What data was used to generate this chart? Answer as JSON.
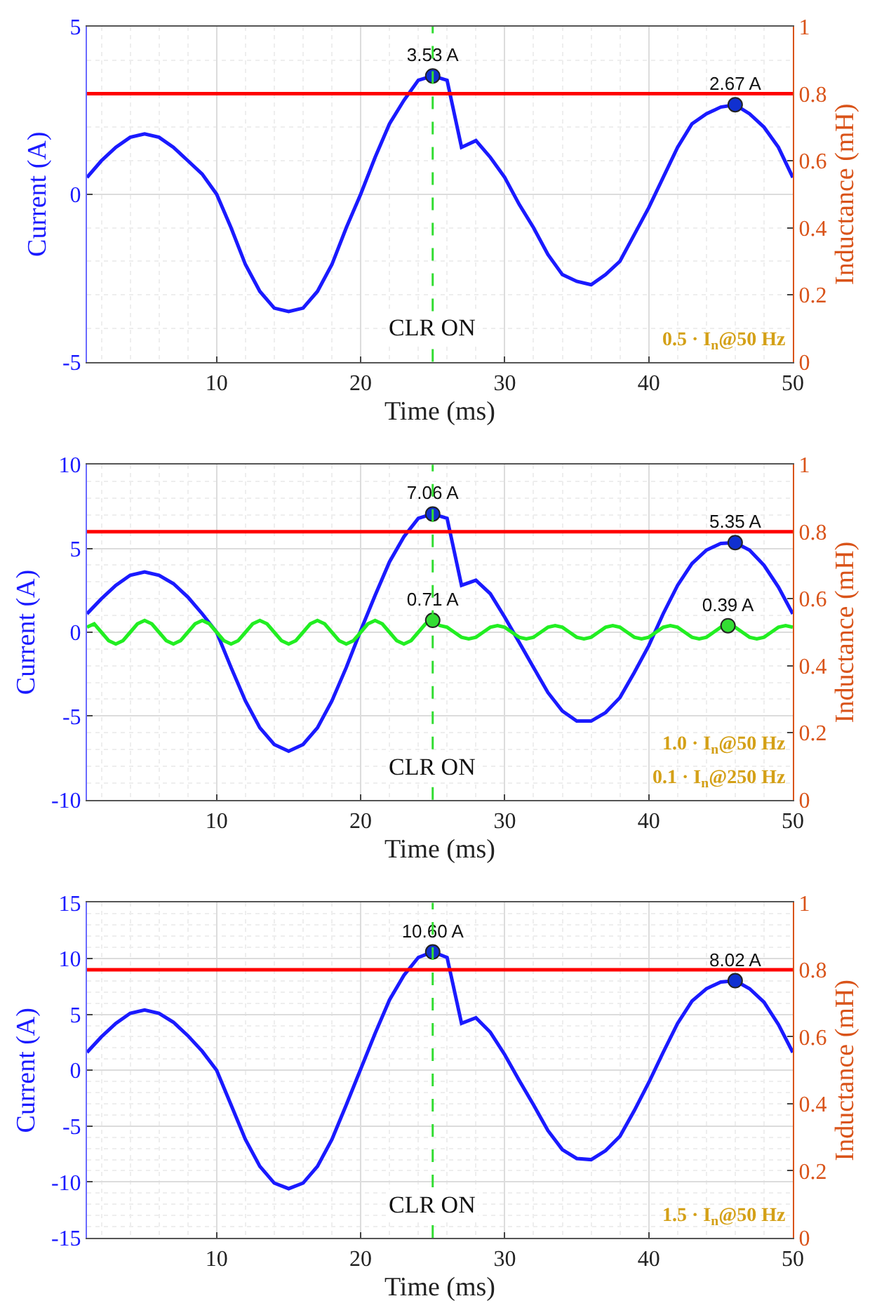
{
  "chart_data": [
    {
      "type": "line",
      "xlabel": "Time (ms)",
      "ylabel": "Current (A)",
      "y2label": "Inductance (mH)",
      "x": [
        1,
        2,
        3,
        4,
        5,
        6,
        7,
        8,
        9,
        10,
        11,
        12,
        13,
        14,
        15,
        16,
        17,
        18,
        19,
        20,
        21,
        22,
        23,
        24,
        25,
        26,
        27,
        28,
        29,
        30,
        31,
        32,
        33,
        34,
        35,
        36,
        37,
        38,
        39,
        40,
        41,
        42,
        43,
        44,
        45,
        46,
        47,
        48,
        49,
        50
      ],
      "series": [
        {
          "color": "#1a1aff",
          "marker": "none",
          "line_style": "solid",
          "values": [
            0.5,
            1.0,
            1.4,
            1.7,
            1.8,
            1.7,
            1.4,
            1.0,
            0.6,
            0.0,
            -1.0,
            -2.1,
            -2.9,
            -3.4,
            -3.5,
            -3.4,
            -2.9,
            -2.1,
            -1.0,
            0.0,
            1.1,
            2.1,
            2.8,
            3.4,
            3.53,
            3.4,
            1.4,
            1.6,
            1.1,
            0.5,
            -0.3,
            -1.0,
            -1.8,
            -2.4,
            -2.6,
            -2.7,
            -2.4,
            -2.0,
            -1.2,
            -0.4,
            0.5,
            1.4,
            2.1,
            2.4,
            2.6,
            2.67,
            2.4,
            2.0,
            1.4,
            0.5
          ]
        },
        {
          "type": "scatter",
          "color": "#1030d0",
          "marker": "circle",
          "x": [
            25,
            46
          ],
          "values": [
            3.53,
            2.67
          ],
          "value_labels": [
            "3.53 A",
            "2.67 A"
          ]
        }
      ],
      "xlim": [
        1,
        50
      ],
      "xticks": [
        10,
        20,
        30,
        40,
        50
      ],
      "ylim": [
        -5,
        5
      ],
      "yticks": [
        -5,
        0,
        5
      ],
      "y2lim": [
        0,
        1
      ],
      "y2ticks": [
        0,
        0.2,
        0.4,
        0.6,
        0.8,
        1
      ],
      "ref_lines": [
        {
          "axis": "x",
          "value": 25,
          "label": "CLR ON",
          "color": "#33dd33",
          "line_style": "dashed"
        },
        {
          "axis": "y2",
          "value": 0.8,
          "label": null,
          "color": "#ff0000",
          "line_style": "solid"
        }
      ],
      "annotations": [
        "0.5 · I$_{n}$@50 Hz"
      ],
      "grid": true
    },
    {
      "type": "line",
      "xlabel": "Time (ms)",
      "ylabel": "Current (A)",
      "y2label": "Inductance (mH)",
      "x": [
        1,
        2,
        3,
        4,
        5,
        6,
        7,
        8,
        9,
        10,
        11,
        12,
        13,
        14,
        15,
        16,
        17,
        18,
        19,
        20,
        21,
        22,
        23,
        24,
        25,
        26,
        27,
        28,
        29,
        30,
        31,
        32,
        33,
        34,
        35,
        36,
        37,
        38,
        39,
        40,
        41,
        42,
        43,
        44,
        45,
        46,
        47,
        48,
        49,
        50
      ],
      "series": [
        {
          "color": "#1a1aff",
          "marker": "none",
          "line_style": "solid",
          "values": [
            1.1,
            2.0,
            2.8,
            3.4,
            3.6,
            3.4,
            2.9,
            2.1,
            1.1,
            0.0,
            -2.1,
            -4.1,
            -5.7,
            -6.7,
            -7.1,
            -6.7,
            -5.7,
            -4.1,
            -2.1,
            0.1,
            2.2,
            4.2,
            5.7,
            6.8,
            7.06,
            6.8,
            2.8,
            3.1,
            2.3,
            0.9,
            -0.6,
            -2.1,
            -3.6,
            -4.7,
            -5.3,
            -5.3,
            -4.8,
            -3.9,
            -2.4,
            -0.8,
            1.1,
            2.8,
            4.1,
            4.9,
            5.3,
            5.35,
            4.9,
            4.0,
            2.7,
            1.1
          ]
        },
        {
          "color": "#22ee22",
          "marker": "none",
          "line_style": "solid",
          "x": [
            1,
            1.5,
            2,
            2.5,
            3,
            3.5,
            4,
            4.5,
            5,
            5.5,
            6,
            6.5,
            7,
            7.5,
            8,
            8.5,
            9,
            9.5,
            10,
            10.5,
            11,
            11.5,
            12,
            12.5,
            13,
            13.5,
            14,
            14.5,
            15,
            15.5,
            16,
            16.5,
            17,
            17.5,
            18,
            18.5,
            19,
            19.5,
            20,
            20.5,
            21,
            21.5,
            22,
            22.5,
            23,
            23.5,
            24,
            24.5,
            25,
            25.5,
            26,
            26.5,
            27,
            27.5,
            28,
            28.5,
            29,
            29.5,
            30,
            30.5,
            31,
            31.5,
            32,
            32.5,
            33,
            33.5,
            34,
            34.5,
            35,
            35.5,
            36,
            36.5,
            37,
            37.5,
            38,
            38.5,
            39,
            39.5,
            40,
            40.5,
            41,
            41.5,
            42,
            42.5,
            43,
            43.5,
            44,
            44.5,
            45,
            45.5,
            46,
            46.5,
            47,
            47.5,
            48,
            48.5,
            49,
            49.5,
            50
          ],
          "values": [
            0.3,
            0.5,
            0,
            -0.5,
            -0.7,
            -0.5,
            0,
            0.5,
            0.7,
            0.5,
            0,
            -0.5,
            -0.7,
            -0.5,
            0,
            0.5,
            0.7,
            0.5,
            0,
            -0.5,
            -0.7,
            -0.5,
            0,
            0.5,
            0.7,
            0.5,
            0,
            -0.5,
            -0.7,
            -0.5,
            0,
            0.5,
            0.7,
            0.5,
            0,
            -0.5,
            -0.7,
            -0.5,
            0,
            0.5,
            0.7,
            0.5,
            0,
            -0.5,
            -0.7,
            -0.5,
            0,
            0.5,
            0.7,
            0.4,
            0.3,
            0,
            -0.3,
            -0.4,
            -0.3,
            0,
            0.3,
            0.4,
            0.3,
            0,
            -0.3,
            -0.4,
            -0.3,
            0,
            0.3,
            0.4,
            0.3,
            0,
            -0.3,
            -0.4,
            -0.3,
            0,
            0.3,
            0.4,
            0.3,
            0,
            -0.3,
            -0.4,
            -0.3,
            0,
            0.3,
            0.4,
            0.3,
            0,
            -0.3,
            -0.4,
            -0.3,
            0,
            0.3,
            0.4,
            0.3,
            0,
            -0.3,
            -0.4,
            -0.3,
            0,
            0.3,
            0.4,
            0.3
          ]
        },
        {
          "type": "scatter",
          "color": "#1030d0",
          "marker": "circle",
          "x": [
            25,
            46
          ],
          "values": [
            7.06,
            5.35
          ],
          "value_labels": [
            "7.06 A",
            "5.35 A"
          ]
        },
        {
          "type": "scatter",
          "color": "#33dd33",
          "marker": "circle",
          "x": [
            25,
            45.5
          ],
          "values": [
            0.71,
            0.39
          ],
          "value_labels": [
            "0.71 A",
            "0.39 A"
          ]
        }
      ],
      "xlim": [
        1,
        50
      ],
      "xticks": [
        10,
        20,
        30,
        40,
        50
      ],
      "ylim": [
        -10,
        10
      ],
      "yticks": [
        -10,
        -5,
        0,
        5,
        10
      ],
      "y2lim": [
        0,
        1
      ],
      "y2ticks": [
        0,
        0.2,
        0.4,
        0.6,
        0.8,
        1
      ],
      "ref_lines": [
        {
          "axis": "x",
          "value": 25,
          "label": "CLR ON",
          "color": "#33dd33",
          "line_style": "dashed"
        },
        {
          "axis": "y2",
          "value": 0.8,
          "label": null,
          "color": "#ff0000",
          "line_style": "solid"
        }
      ],
      "annotations": [
        "1.0 · I$_{n}$@50 Hz",
        "0.1 · I$_{n}$@250 Hz"
      ],
      "grid": true
    },
    {
      "type": "line",
      "xlabel": "Time (ms)",
      "ylabel": "Current (A)",
      "y2label": "Inductance (mH)",
      "x": [
        1,
        2,
        3,
        4,
        5,
        6,
        7,
        8,
        9,
        10,
        11,
        12,
        13,
        14,
        15,
        16,
        17,
        18,
        19,
        20,
        21,
        22,
        23,
        24,
        25,
        26,
        27,
        28,
        29,
        30,
        31,
        32,
        33,
        34,
        35,
        36,
        37,
        38,
        39,
        40,
        41,
        42,
        43,
        44,
        45,
        46,
        47,
        48,
        49,
        50
      ],
      "series": [
        {
          "color": "#1a1aff",
          "marker": "none",
          "line_style": "solid",
          "values": [
            1.6,
            3.0,
            4.2,
            5.1,
            5.4,
            5.1,
            4.3,
            3.1,
            1.7,
            0.0,
            -3.1,
            -6.2,
            -8.6,
            -10.1,
            -10.6,
            -10.1,
            -8.6,
            -6.2,
            -3.1,
            0.1,
            3.3,
            6.3,
            8.5,
            10.1,
            10.6,
            10.1,
            4.2,
            4.7,
            3.4,
            1.4,
            -0.9,
            -3.1,
            -5.4,
            -7.1,
            -7.9,
            -8.0,
            -7.2,
            -5.9,
            -3.6,
            -1.1,
            1.6,
            4.2,
            6.2,
            7.3,
            7.9,
            8.02,
            7.3,
            6.1,
            4.1,
            1.6
          ]
        },
        {
          "type": "scatter",
          "color": "#1030d0",
          "marker": "circle",
          "x": [
            25,
            46
          ],
          "values": [
            10.6,
            8.02
          ],
          "value_labels": [
            "10.60 A",
            "8.02 A"
          ]
        }
      ],
      "xlim": [
        1,
        50
      ],
      "xticks": [
        10,
        20,
        30,
        40,
        50
      ],
      "ylim": [
        -15,
        15
      ],
      "yticks": [
        -15,
        -10,
        -5,
        0,
        5,
        10,
        15
      ],
      "y2lim": [
        0,
        1
      ],
      "y2ticks": [
        0,
        0.2,
        0.4,
        0.6,
        0.8,
        1
      ],
      "ref_lines": [
        {
          "axis": "x",
          "value": 25,
          "label": "CLR ON",
          "color": "#33dd33",
          "line_style": "dashed"
        },
        {
          "axis": "y2",
          "value": 0.8,
          "label": null,
          "color": "#ff0000",
          "line_style": "solid"
        }
      ],
      "annotations": [
        "1.5 · I$_{n}$@50 Hz"
      ],
      "grid": true
    }
  ]
}
